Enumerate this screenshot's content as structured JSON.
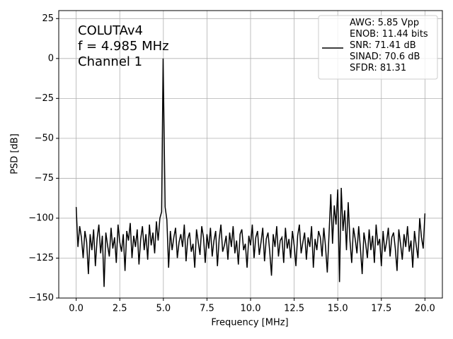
{
  "chart_data": {
    "type": "line",
    "annotations": [
      "COLUTAv4",
      "f = 4.985 MHz",
      "Channel 1"
    ],
    "xlabel": "Frequency [MHz]",
    "ylabel": "PSD [dB]",
    "x": [
      0,
      0.1,
      0.2,
      0.3,
      0.4,
      0.5,
      0.6,
      0.7,
      0.8,
      0.9,
      1,
      1.1,
      1.2,
      1.3,
      1.4,
      1.5,
      1.6,
      1.7,
      1.8,
      1.9,
      2,
      2.1,
      2.2,
      2.3,
      2.4,
      2.5,
      2.6,
      2.7,
      2.8,
      2.9,
      3,
      3.1,
      3.2,
      3.3,
      3.4,
      3.5,
      3.6,
      3.7,
      3.8,
      3.9,
      4,
      4.1,
      4.2,
      4.3,
      4.4,
      4.5,
      4.6,
      4.7,
      4.8,
      4.9,
      4.985,
      5.1,
      5.2,
      5.3,
      5.4,
      5.5,
      5.6,
      5.7,
      5.8,
      5.9,
      6,
      6.1,
      6.2,
      6.3,
      6.4,
      6.5,
      6.6,
      6.7,
      6.8,
      6.9,
      7,
      7.1,
      7.2,
      7.3,
      7.4,
      7.5,
      7.6,
      7.7,
      7.8,
      7.9,
      8,
      8.1,
      8.2,
      8.3,
      8.4,
      8.5,
      8.6,
      8.7,
      8.8,
      8.9,
      9,
      9.1,
      9.2,
      9.3,
      9.4,
      9.5,
      9.6,
      9.7,
      9.8,
      9.9,
      10,
      10.1,
      10.2,
      10.3,
      10.4,
      10.5,
      10.6,
      10.7,
      10.8,
      10.9,
      11,
      11.1,
      11.2,
      11.3,
      11.4,
      11.5,
      11.6,
      11.7,
      11.8,
      11.9,
      12,
      12.1,
      12.2,
      12.3,
      12.4,
      12.5,
      12.6,
      12.7,
      12.8,
      12.9,
      13,
      13.1,
      13.2,
      13.3,
      13.4,
      13.5,
      13.6,
      13.7,
      13.8,
      13.9,
      14,
      14.1,
      14.2,
      14.3,
      14.4,
      14.5,
      14.6,
      14.7,
      14.8,
      14.9,
      15,
      15.1,
      15.2,
      15.3,
      15.4,
      15.5,
      15.6,
      15.7,
      15.8,
      15.9,
      16,
      16.1,
      16.2,
      16.3,
      16.4,
      16.5,
      16.6,
      16.7,
      16.8,
      16.9,
      17,
      17.1,
      17.2,
      17.3,
      17.4,
      17.5,
      17.6,
      17.7,
      17.8,
      17.9,
      18,
      18.1,
      18.2,
      18.3,
      18.4,
      18.5,
      18.6,
      18.7,
      18.8,
      18.9,
      19,
      19.1,
      19.2,
      19.3,
      19.4,
      19.5,
      19.6,
      19.7,
      19.8,
      19.9,
      20
    ],
    "series": [
      {
        "name": "AWG: 5.85 Vpp\nENOB: 11.44 bits\nSNR: 71.41 dB\nSINAD: 70.6 dB\nSFDR: 81.31",
        "color": "#000000",
        "values": [
          -93,
          -118,
          -105,
          -112,
          -125,
          -108,
          -115,
          -135,
          -110,
          -120,
          -107,
          -130,
          -113,
          -104,
          -122,
          -111,
          -143,
          -109,
          -117,
          -124,
          -106,
          -119,
          -112,
          -128,
          -104,
          -115,
          -121,
          -110,
          -133,
          -108,
          -114,
          -103,
          -125,
          -111,
          -118,
          -107,
          -129,
          -113,
          -105,
          -120,
          -110,
          -126,
          -104,
          -117,
          -109,
          -122,
          -102,
          -114,
          -100,
          -96,
          0,
          -93,
          -101,
          -131,
          -108,
          -120,
          -112,
          -106,
          -125,
          -115,
          -110,
          -118,
          -104,
          -127,
          -113,
          -109,
          -121,
          -116,
          -131,
          -107,
          -115,
          -123,
          -105,
          -112,
          -128,
          -110,
          -119,
          -106,
          -124,
          -114,
          -108,
          -130,
          -113,
          -104,
          -121,
          -117,
          -111,
          -126,
          -109,
          -118,
          -105,
          -122,
          -114,
          -129,
          -110,
          -107,
          -120,
          -116,
          -131,
          -111,
          -117,
          -104,
          -125,
          -112,
          -108,
          -123,
          -115,
          -106,
          -127,
          -113,
          -109,
          -121,
          -136,
          -110,
          -118,
          -105,
          -124,
          -114,
          -112,
          -128,
          -106,
          -119,
          -113,
          -125,
          -108,
          -117,
          -130,
          -111,
          -104,
          -122,
          -115,
          -109,
          -126,
          -112,
          -118,
          -105,
          -131,
          -113,
          -120,
          -108,
          -112,
          -124,
          -106,
          -118,
          -134,
          -110,
          -85,
          -116,
          -92,
          -104,
          -82,
          -140,
          -81,
          -108,
          -95,
          -120,
          -90,
          -114,
          -128,
          -106,
          -113,
          -122,
          -105,
          -119,
          -135,
          -109,
          -116,
          -125,
          -107,
          -120,
          -111,
          -128,
          -104,
          -117,
          -113,
          -130,
          -108,
          -121,
          -115,
          -106,
          -124,
          -112,
          -109,
          -119,
          -133,
          -107,
          -116,
          -126,
          -110,
          -118,
          -105,
          -121,
          -114,
          -131,
          -108,
          -117,
          -125,
          -100,
          -112,
          -119,
          -97
        ]
      }
    ],
    "xlim": [
      -1,
      21
    ],
    "xticks": [
      {
        "value": 0,
        "label": "0.0"
      },
      2.5,
      {
        "value": 5,
        "label": "5.0"
      },
      7.5,
      {
        "value": 10,
        "label": "10.0"
      },
      12.5,
      {
        "value": 15,
        "label": "15.0"
      },
      17.5,
      {
        "value": 20,
        "label": "20.0"
      }
    ],
    "ylim": [
      -150,
      30
    ],
    "yticks": [
      {
        "value": -150,
        "label": "−150"
      },
      {
        "value": -125,
        "label": "−125"
      },
      {
        "value": -100,
        "label": "−100"
      },
      {
        "value": -75,
        "label": "−75"
      },
      {
        "value": -50,
        "label": "−50"
      },
      {
        "value": -25,
        "label": "−25"
      },
      0,
      25
    ],
    "grid": true,
    "legend": "upper right"
  }
}
